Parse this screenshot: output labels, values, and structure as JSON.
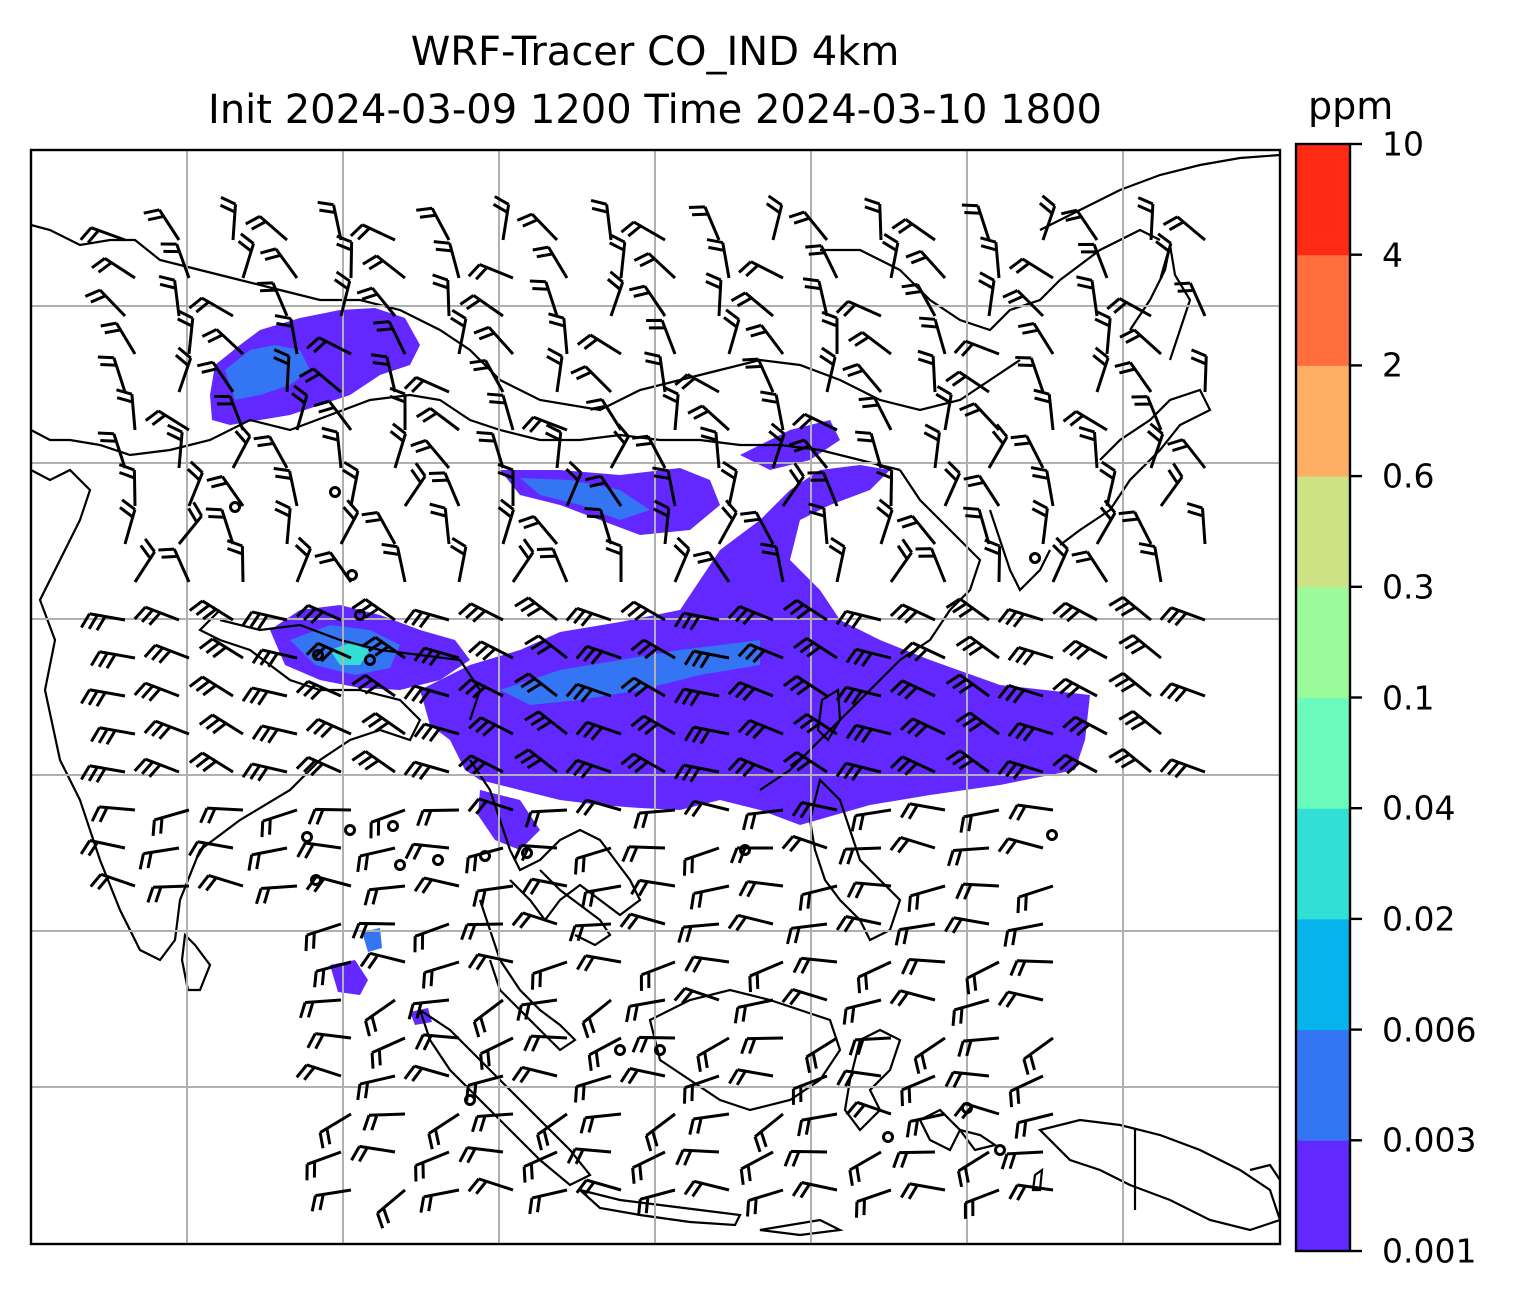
{
  "title": {
    "line1": "WRF-Tracer CO_IND 4km",
    "line2": "Init 2024-03-09 1200 Time 2024-03-10 1800"
  },
  "colorbar": {
    "unit": "ppm",
    "levels": [
      "0.001",
      "0.003",
      "0.006",
      "0.02",
      "0.04",
      "0.1",
      "0.3",
      "0.6",
      "2",
      "4",
      "10"
    ],
    "colors": [
      "#6228ff",
      "#3375f3",
      "#06b3eb",
      "#32dfd4",
      "#6bfcbd",
      "#9bfa9a",
      "#cde185",
      "#fdae63",
      "#ff6e3c",
      "#ff2a14"
    ]
  },
  "map": {
    "projection": "lat-lon",
    "gridlines": true,
    "coastlines": true,
    "wind_barbs": true,
    "field": "CO_IND tracer concentration"
  },
  "colors": {
    "frame": "#000000",
    "grid": "#b0b0b0",
    "coast": "#000000"
  }
}
